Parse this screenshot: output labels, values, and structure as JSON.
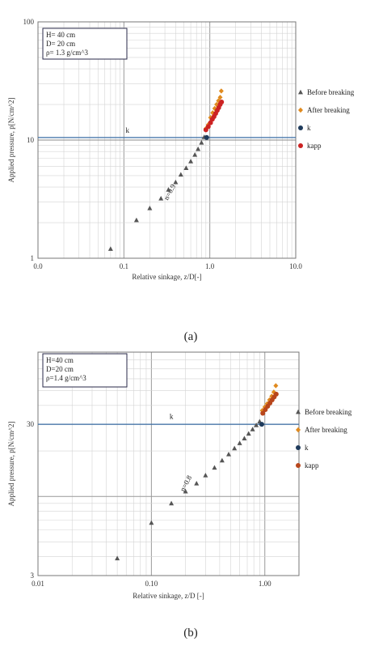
{
  "chart_data": [
    {
      "type": "scatter",
      "panel_label": "(a)",
      "xlabel": "Relative sinkage, z/D[-]",
      "ylabel": "Applied pressure, p[N/cm^2]",
      "x_scale": "log",
      "y_scale": "log",
      "xlim": [
        0.01,
        10.0
      ],
      "ylim": [
        1,
        100
      ],
      "x_ticks": [
        0.01,
        0.1,
        1.0,
        10.0
      ],
      "x_tick_labels": [
        "0.0",
        "0.1",
        "1.0",
        "10.0"
      ],
      "y_ticks": [
        1,
        10,
        100
      ],
      "y_tick_labels": [
        "1",
        "10",
        "100"
      ],
      "grid": true,
      "legend_position": "right",
      "info_lines": [
        "H= 40 cm",
        "D= 20 cm",
        "ρ= 1.3 g/cm^3"
      ],
      "annotations": [
        {
          "text": "k",
          "x": 0.11,
          "y": 11.5
        },
        {
          "text": "n=0.9",
          "x": 0.36,
          "y": 3.55,
          "angle": -62
        }
      ],
      "reference_line": {
        "y": 10.5,
        "x_from": 0.01,
        "x_to": 10.0
      },
      "series": [
        {
          "name": "Before breaking",
          "marker": "triangle",
          "color": "#555555",
          "x": [
            0.07,
            0.14,
            0.2,
            0.27,
            0.33,
            0.4,
            0.46,
            0.53,
            0.6,
            0.67,
            0.73,
            0.8,
            0.86
          ],
          "y": [
            1.2,
            2.1,
            2.65,
            3.2,
            3.8,
            4.4,
            5.1,
            5.8,
            6.6,
            7.5,
            8.4,
            9.5,
            10.6
          ]
        },
        {
          "name": "After breaking",
          "marker": "diamond",
          "color": "#e08a1e",
          "x": [
            0.9,
            0.96,
            1.02,
            1.08,
            1.14,
            1.2,
            1.26,
            1.32,
            1.36
          ],
          "y": [
            12.5,
            13.5,
            15.5,
            17.0,
            18.5,
            20.0,
            21.5,
            23.0,
            26.0
          ]
        },
        {
          "name": "k",
          "marker": "circle",
          "color": "#1f3b5c",
          "x": [
            0.92
          ],
          "y": [
            10.5
          ]
        },
        {
          "name": "kapp",
          "marker": "circle",
          "color": "#cc2222",
          "x": [
            0.9,
            0.96,
            1.02,
            1.07,
            1.12,
            1.17,
            1.22,
            1.27,
            1.32,
            1.37
          ],
          "y": [
            12.2,
            13.0,
            14.0,
            15.0,
            15.8,
            16.8,
            17.8,
            18.8,
            20.0,
            21.0
          ]
        }
      ]
    },
    {
      "type": "scatter",
      "panel_label": "(b)",
      "xlabel": "Relative sinkage, z/D [-]",
      "ylabel": "Applied pressure, p[N/cm^2]",
      "x_scale": "log",
      "y_scale": "log",
      "xlim": [
        0.01,
        2.0
      ],
      "ylim": [
        3,
        90
      ],
      "x_ticks": [
        0.01,
        0.1,
        1.0
      ],
      "x_tick_labels": [
        "0.01",
        "0.10",
        "1.00"
      ],
      "y_ticks": [
        3,
        30
      ],
      "y_tick_labels": [
        "3",
        "30"
      ],
      "grid": true,
      "legend_position": "right",
      "info_lines": [
        "H=40 cm",
        "D=20 cm",
        "ρ=1.4  g/cm^3"
      ],
      "annotations": [
        {
          "text": "k",
          "x": 0.15,
          "y": 32.5
        },
        {
          "text": "n=0.8",
          "x": 0.21,
          "y": 12.0,
          "angle": -62
        }
      ],
      "reference_line": {
        "y": 30.0,
        "x_from": 0.01,
        "x_to": 2.0
      },
      "series": [
        {
          "name": "Before breaking",
          "marker": "triangle",
          "color": "#555555",
          "x": [
            0.05,
            0.1,
            0.15,
            0.2,
            0.25,
            0.3,
            0.36,
            0.42,
            0.48,
            0.54,
            0.6,
            0.66,
            0.72,
            0.78,
            0.84,
            0.9
          ],
          "y": [
            3.9,
            6.7,
            9.0,
            10.8,
            12.2,
            13.8,
            15.5,
            17.3,
            19.0,
            20.8,
            22.5,
            24.2,
            26.0,
            27.8,
            29.6,
            31.3
          ]
        },
        {
          "name": "After breaking",
          "marker": "diamond",
          "color": "#e08a1e",
          "x": [
            0.95,
            1.0,
            1.05,
            1.1,
            1.15,
            1.2,
            1.25
          ],
          "y": [
            37.0,
            39.0,
            41.0,
            43.5,
            46.0,
            49.0,
            54.0
          ]
        },
        {
          "name": "k",
          "marker": "circle",
          "color": "#1f3b5c",
          "x": [
            0.94
          ],
          "y": [
            30.0
          ]
        },
        {
          "name": "kapp",
          "marker": "circle",
          "color": "#b8461c",
          "x": [
            0.96,
            1.01,
            1.06,
            1.11,
            1.16,
            1.21,
            1.26
          ],
          "y": [
            35.5,
            37.5,
            39.5,
            41.5,
            43.5,
            45.5,
            47.5
          ]
        }
      ]
    }
  ]
}
